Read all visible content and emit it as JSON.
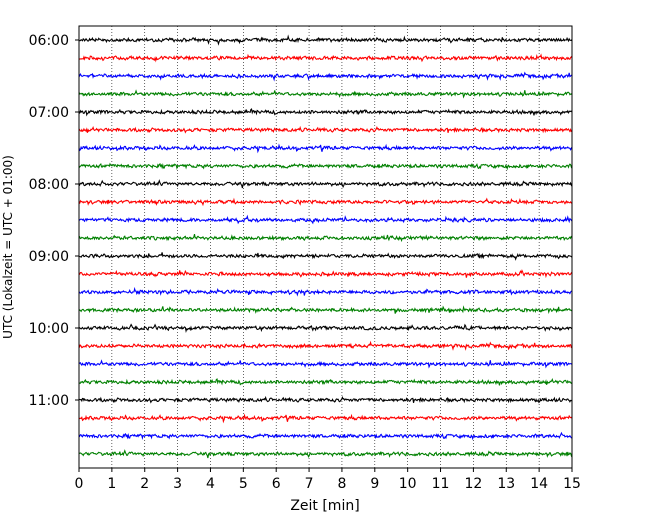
{
  "chart_data": {
    "type": "line",
    "title": "",
    "xlabel": "Zeit  [min]",
    "ylabel": "UTC (Lokalzeit = UTC + 01:00)",
    "xlim": [
      0,
      15
    ],
    "x_ticks": [
      "0",
      "1",
      "2",
      "3",
      "4",
      "5",
      "6",
      "7",
      "8",
      "9",
      "10",
      "11",
      "12",
      "13",
      "14",
      "15"
    ],
    "y_ticks": [
      "06:00",
      "07:00",
      "08:00",
      "09:00",
      "10:00",
      "11:00"
    ],
    "grid": "vertical dotted lines at each minute",
    "trace_start_utc": "06:00",
    "trace_interval_min": 15,
    "trace_count": 24,
    "trace_colors": [
      "#000000",
      "#ff0000",
      "#0000ff",
      "#008000"
    ]
  }
}
